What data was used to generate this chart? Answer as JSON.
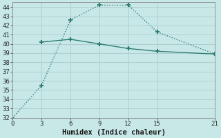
{
  "xlabel": "Humidex (Indice chaleur)",
  "background_color": "#c8e8e8",
  "grid_color": "#b0cece",
  "line_color": "#2e7d72",
  "series1_x": [
    3,
    6,
    9,
    12,
    15,
    21
  ],
  "series1_y": [
    40.2,
    40.5,
    40.0,
    39.5,
    39.2,
    38.9
  ],
  "series2_x": [
    0,
    3,
    6,
    9,
    12,
    15,
    21
  ],
  "series2_y": [
    32.0,
    35.5,
    42.6,
    44.2,
    44.2,
    41.3,
    38.9
  ],
  "xlim": [
    0,
    21
  ],
  "ylim": [
    32,
    44.5
  ],
  "xticks": [
    0,
    3,
    6,
    9,
    12,
    15,
    21
  ],
  "yticks": [
    32,
    33,
    34,
    35,
    36,
    37,
    38,
    39,
    40,
    41,
    42,
    43,
    44
  ],
  "marker": "+",
  "marker_size": 5,
  "marker_linewidth": 1.5,
  "linewidth": 1.0,
  "xlabel_fontsize": 7.5,
  "tick_fontsize": 6.5
}
